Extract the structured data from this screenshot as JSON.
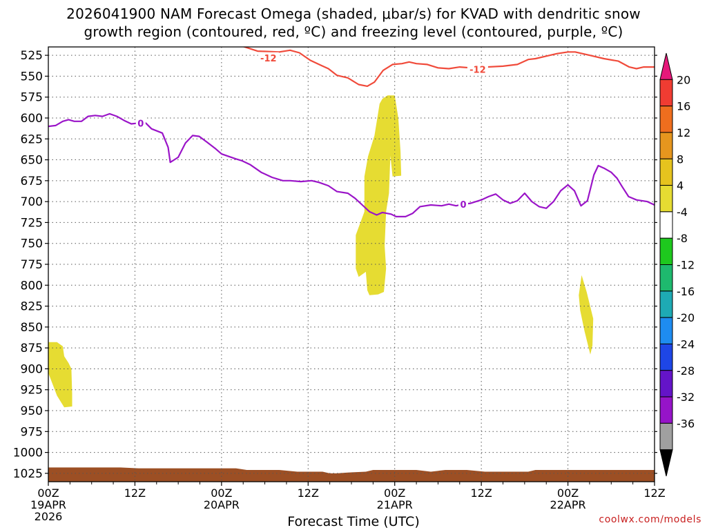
{
  "title_line1": "2026041900 NAM Forecast Omega (shaded, μbar/s) for KVAD with dendritic snow",
  "title_line2": "growth region (contoured, red, ºC) and freezing level (contoured, purple, ºC)",
  "credit": "coolwx.com/models",
  "chart_data": {
    "type": "time-height",
    "title": "2026041900 NAM Forecast Omega (shaded, μbar/s) for KVAD with dendritic snow growth region (contoured, red, ºC) and freezing level (contoured, purple, ºC)",
    "xlabel": "Forecast Time (UTC)",
    "ylabel": "",
    "x_range_hours": [
      0,
      84
    ],
    "y_range_hPa": [
      515,
      1035
    ],
    "y_ticks": [
      525,
      550,
      575,
      600,
      625,
      650,
      675,
      700,
      725,
      750,
      775,
      800,
      825,
      850,
      875,
      900,
      925,
      950,
      975,
      1000,
      1025
    ],
    "x_ticks": [
      {
        "hour": 0,
        "label": "00Z",
        "date": "19APR",
        "year": "2026"
      },
      {
        "hour": 12,
        "label": "12Z",
        "date": "",
        "year": ""
      },
      {
        "hour": 24,
        "label": "00Z",
        "date": "20APR",
        "year": ""
      },
      {
        "hour": 36,
        "label": "12Z",
        "date": "",
        "year": ""
      },
      {
        "hour": 48,
        "label": "00Z",
        "date": "21APR",
        "year": ""
      },
      {
        "hour": 60,
        "label": "12Z",
        "date": "",
        "year": ""
      },
      {
        "hour": 72,
        "label": "00Z",
        "date": "22APR",
        "year": ""
      },
      {
        "hour": 84,
        "label": "12Z",
        "date": "",
        "year": ""
      }
    ],
    "grid": true,
    "series": [
      {
        "name": "-12 ºC (dendritic growth top)",
        "color": "#f04a3a",
        "label": "-12",
        "label_points": [
          [
            30.5,
            528
          ],
          [
            59.5,
            542
          ]
        ],
        "points": [
          [
            26.5,
            513
          ],
          [
            29,
            520
          ],
          [
            32,
            521
          ],
          [
            33.5,
            519
          ],
          [
            34.8,
            522
          ],
          [
            36.3,
            531
          ],
          [
            37.8,
            537
          ],
          [
            38.8,
            541
          ],
          [
            40,
            549
          ],
          [
            41.5,
            552
          ],
          [
            43,
            560
          ],
          [
            44.2,
            562
          ],
          [
            45.2,
            557
          ],
          [
            46.4,
            543
          ],
          [
            47.7,
            536
          ],
          [
            49,
            535
          ],
          [
            50,
            533
          ],
          [
            51,
            535
          ],
          [
            52.5,
            536
          ],
          [
            54,
            540
          ],
          [
            55.5,
            541
          ],
          [
            57,
            539
          ],
          [
            58.5,
            540
          ],
          [
            63,
            538
          ],
          [
            65,
            536
          ],
          [
            66.5,
            530
          ],
          [
            67.5,
            529
          ],
          [
            69,
            526
          ],
          [
            70.5,
            523
          ],
          [
            72,
            521
          ],
          [
            73,
            521
          ],
          [
            75,
            525
          ],
          [
            77,
            529
          ],
          [
            79,
            532
          ],
          [
            80.5,
            539
          ],
          [
            81.5,
            541
          ],
          [
            82.5,
            539
          ],
          [
            84,
            539
          ]
        ]
      },
      {
        "name": "0 ºC (freezing level)",
        "color": "#9a14c8",
        "label": "0",
        "label_points": [
          [
            12.8,
            606
          ],
          [
            57.5,
            703
          ]
        ],
        "points": [
          [
            0,
            610
          ],
          [
            1,
            609
          ],
          [
            2,
            604
          ],
          [
            2.8,
            602
          ],
          [
            3.6,
            604
          ],
          [
            4.6,
            604
          ],
          [
            5.5,
            598
          ],
          [
            6.5,
            597
          ],
          [
            7.5,
            598
          ],
          [
            8.5,
            595
          ],
          [
            9.5,
            598
          ],
          [
            10.5,
            603
          ],
          [
            11.5,
            607
          ],
          [
            12.5,
            606
          ],
          [
            13.5,
            606
          ],
          [
            14.3,
            613
          ],
          [
            15.8,
            618
          ],
          [
            16.6,
            635
          ],
          [
            16.9,
            653
          ],
          [
            18,
            647
          ],
          [
            19,
            630
          ],
          [
            20,
            621
          ],
          [
            20.9,
            622
          ],
          [
            22,
            629
          ],
          [
            23.2,
            637
          ],
          [
            24,
            643
          ],
          [
            25,
            646
          ],
          [
            26,
            649
          ],
          [
            26.8,
            651
          ],
          [
            28,
            656
          ],
          [
            29.5,
            665
          ],
          [
            31,
            671
          ],
          [
            32.5,
            675
          ],
          [
            33.5,
            675
          ],
          [
            35,
            676
          ],
          [
            36.5,
            675
          ],
          [
            37.5,
            677
          ],
          [
            38.8,
            681
          ],
          [
            40,
            688
          ],
          [
            41.5,
            690
          ],
          [
            42.5,
            696
          ],
          [
            43.5,
            704
          ],
          [
            44.5,
            712
          ],
          [
            45.5,
            716
          ],
          [
            46.3,
            713
          ],
          [
            47.5,
            715
          ],
          [
            48.2,
            718
          ],
          [
            49.5,
            718
          ],
          [
            50.5,
            714
          ],
          [
            51.5,
            706
          ],
          [
            53,
            704
          ],
          [
            54.5,
            705
          ],
          [
            55.5,
            703
          ],
          [
            56.5,
            705
          ],
          [
            57.5,
            703
          ],
          [
            58.5,
            702
          ],
          [
            60,
            698
          ],
          [
            61,
            694
          ],
          [
            62,
            691
          ],
          [
            63,
            698
          ],
          [
            64,
            702
          ],
          [
            65,
            699
          ],
          [
            66,
            690
          ],
          [
            67,
            700
          ],
          [
            68,
            706
          ],
          [
            69,
            708
          ],
          [
            70,
            700
          ],
          [
            71,
            687
          ],
          [
            72,
            680
          ],
          [
            72.9,
            687
          ],
          [
            73.8,
            705
          ],
          [
            74.7,
            699
          ],
          [
            75.6,
            668
          ],
          [
            76.2,
            657
          ],
          [
            77,
            660
          ],
          [
            78,
            665
          ],
          [
            78.8,
            672
          ],
          [
            79.5,
            682
          ],
          [
            80.4,
            694
          ],
          [
            81.5,
            698
          ],
          [
            83,
            700
          ],
          [
            84,
            704
          ]
        ]
      }
    ],
    "shaded_regions": [
      {
        "name": "omega 4 to 8",
        "value_range": [
          4,
          8
        ],
        "color": "#e6dc32",
        "points": [
          [
            0,
            868
          ],
          [
            1.2,
            868
          ],
          [
            2,
            873
          ],
          [
            2.2,
            885
          ],
          [
            2.8,
            893
          ],
          [
            3.2,
            900
          ],
          [
            3.3,
            930
          ],
          [
            3.3,
            945
          ],
          [
            2.2,
            946
          ],
          [
            1.2,
            932
          ],
          [
            0,
            905
          ]
        ]
      },
      {
        "name": "omega 4 to 8",
        "value_range": [
          4,
          8
        ],
        "color": "#e6dc32",
        "points": [
          [
            46.3,
            577
          ],
          [
            47,
            573
          ],
          [
            48,
            573
          ],
          [
            48.5,
            600
          ],
          [
            48.8,
            640
          ],
          [
            48.9,
            669
          ],
          [
            47.7,
            670
          ],
          [
            47.4,
            645
          ],
          [
            47.2,
            690
          ],
          [
            46.8,
            712
          ],
          [
            46.6,
            753
          ],
          [
            46.8,
            780
          ],
          [
            46.5,
            808
          ],
          [
            45.7,
            811
          ],
          [
            44.5,
            812
          ],
          [
            44.2,
            806
          ],
          [
            44,
            784
          ],
          [
            43,
            790
          ],
          [
            42.6,
            780
          ],
          [
            42.6,
            740
          ],
          [
            43.8,
            712
          ],
          [
            43.8,
            670
          ],
          [
            44.3,
            646
          ],
          [
            45.2,
            621
          ],
          [
            45.9,
            583
          ]
        ]
      },
      {
        "name": "omega 4 to 8",
        "value_range": [
          4,
          8
        ],
        "color": "#e6dc32",
        "points": [
          [
            73.9,
            788
          ],
          [
            74.6,
            808
          ],
          [
            75.5,
            840
          ],
          [
            75.4,
            872
          ],
          [
            75.1,
            883
          ],
          [
            74.3,
            855
          ],
          [
            73.7,
            830
          ],
          [
            73.5,
            812
          ]
        ]
      },
      {
        "name": "terrain",
        "value_range": null,
        "color": "#9c4f24",
        "points": [
          [
            0,
            1018
          ],
          [
            10,
            1018
          ],
          [
            12.5,
            1019
          ],
          [
            26,
            1019
          ],
          [
            27.5,
            1021
          ],
          [
            32,
            1021
          ],
          [
            34.5,
            1023
          ],
          [
            38,
            1023
          ],
          [
            39,
            1025
          ],
          [
            40,
            1025
          ],
          [
            41.5,
            1024
          ],
          [
            44,
            1023
          ],
          [
            45,
            1021
          ],
          [
            51,
            1021
          ],
          [
            53,
            1023
          ],
          [
            55,
            1021
          ],
          [
            58,
            1021
          ],
          [
            60.5,
            1023
          ],
          [
            66.5,
            1023
          ],
          [
            67.5,
            1021
          ],
          [
            84,
            1021
          ],
          [
            84,
            1035
          ],
          [
            0,
            1035
          ]
        ]
      }
    ],
    "colorbar": {
      "labels": [
        "20",
        "16",
        "12",
        "8",
        "4",
        "-4",
        "-8",
        "-12",
        "-16",
        "-20",
        "-24",
        "-28",
        "-32",
        "-36"
      ],
      "colors": [
        "#e6197a",
        "#f03c32",
        "#ef6e1e",
        "#e6961e",
        "#e6c31e",
        "#e6dc32",
        "#ffffff",
        "#1ec81e",
        "#1eb96e",
        "#1eaab4",
        "#1e8cf0",
        "#1e46e6",
        "#6414c8",
        "#9614c8",
        "#a0a0a0",
        "#000000"
      ]
    }
  }
}
